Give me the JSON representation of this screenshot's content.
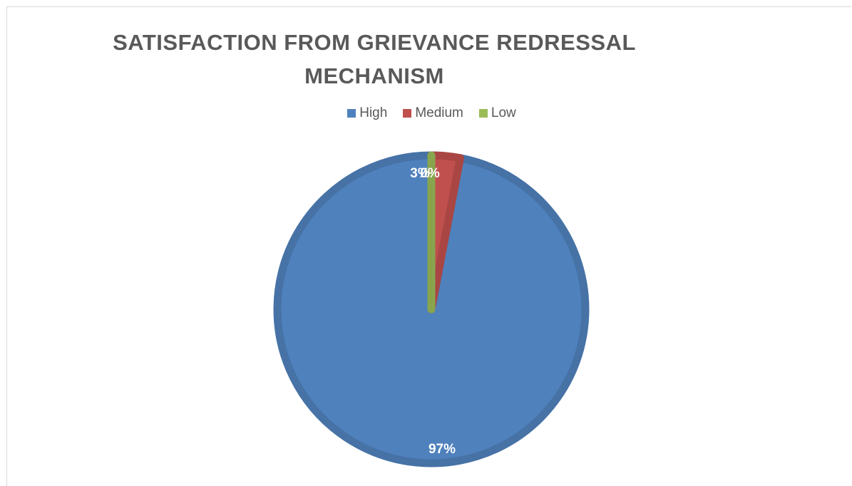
{
  "chart_data": {
    "type": "pie",
    "title": "SATISFACTION FROM GRIEVANCE REDRESSAL MECHANISM",
    "categories": [
      "High",
      "Medium",
      "Low"
    ],
    "values": [
      97,
      3,
      0
    ],
    "labels": [
      "97%",
      "3%",
      "0%"
    ],
    "colors": [
      "#4f81bd",
      "#c0504d",
      "#9bbb59"
    ],
    "legend_position": "top"
  }
}
